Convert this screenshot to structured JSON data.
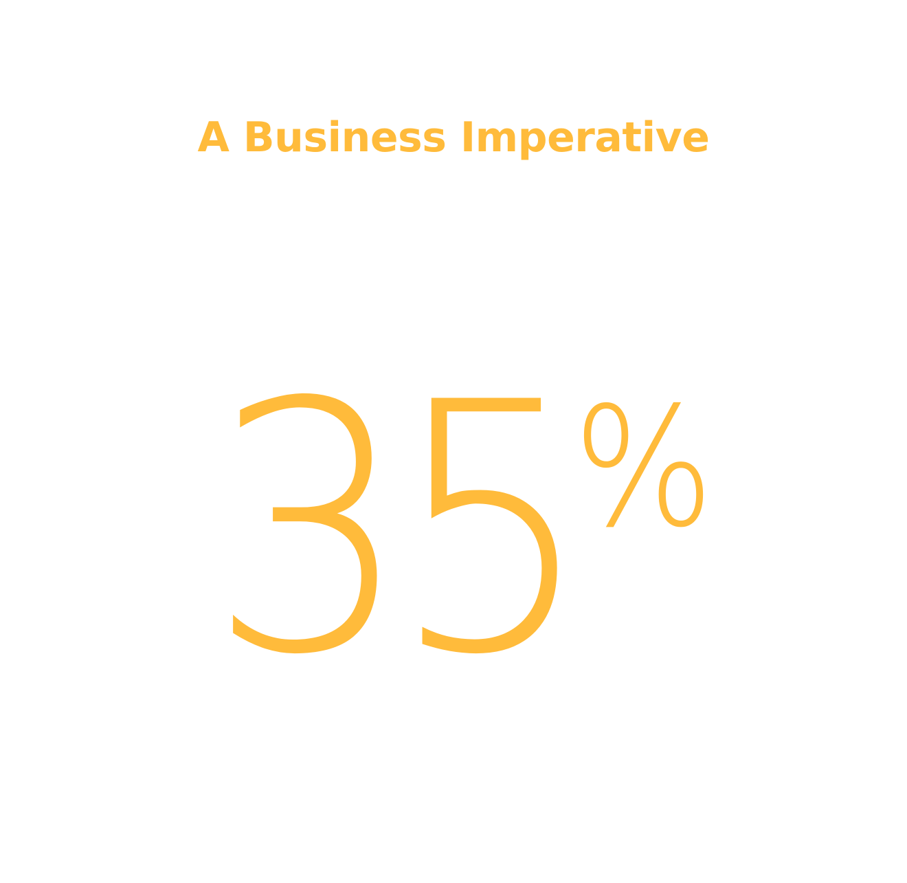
{
  "headline": "A Business Imperative",
  "stat": {
    "value": "35",
    "unit": "%"
  },
  "colors": {
    "accent": "#ffbb3b",
    "background": "#ffffff"
  }
}
